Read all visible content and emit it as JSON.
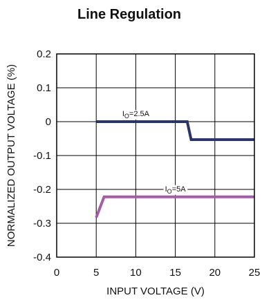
{
  "chart_data": {
    "type": "line",
    "title": "Line Regulation",
    "xlabel": "INPUT VOLTAGE (V)",
    "ylabel": "NORMALIZED OUTPUT VOLTAGE (%)",
    "xlim": [
      0,
      25
    ],
    "ylim": [
      -0.4,
      0.2
    ],
    "xticks": [
      "0",
      "5",
      "10",
      "15",
      "20",
      "25"
    ],
    "yticks": [
      "0.2",
      "0.1",
      "0",
      "-0.1",
      "-0.2",
      "-0.3",
      "-0.4"
    ],
    "grid": true,
    "legend": "none",
    "series": [
      {
        "name": "I_O=2.5A",
        "label_main": "I",
        "label_sub": "O",
        "label_tail": "=2.5A",
        "color": "#2b3566",
        "x": [
          5,
          16.5,
          17,
          25
        ],
        "y": [
          0,
          0,
          -0.053,
          -0.053
        ]
      },
      {
        "name": "I_O=5A",
        "label_main": "I",
        "label_sub": "O",
        "label_tail": "=5A",
        "color": "#a65ca5",
        "x": [
          5,
          6,
          25
        ],
        "y": [
          -0.283,
          -0.222,
          -0.222
        ]
      }
    ]
  }
}
